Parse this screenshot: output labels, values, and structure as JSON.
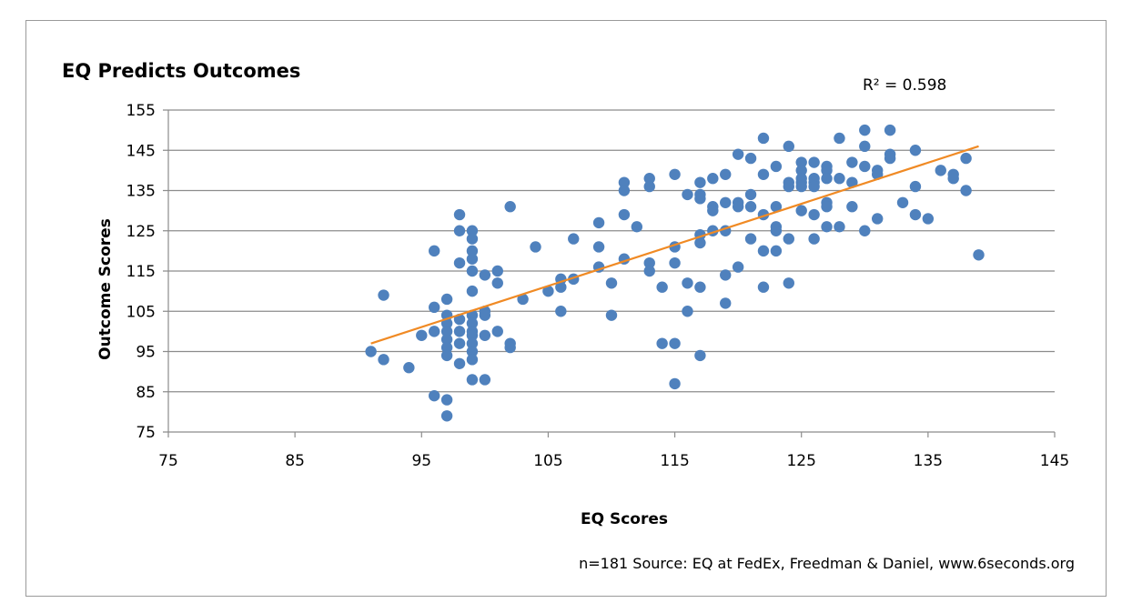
{
  "chart_data": {
    "type": "scatter",
    "title": "EQ Predicts Outcomes",
    "xlabel": "EQ Scores",
    "ylabel": "Outcome Scores",
    "xlim": [
      75,
      145
    ],
    "ylim": [
      75,
      155
    ],
    "x_ticks": [
      75,
      85,
      95,
      105,
      115,
      125,
      135,
      145
    ],
    "y_ticks": [
      75,
      85,
      95,
      105,
      115,
      125,
      135,
      145,
      155
    ],
    "grid": "horizontal",
    "trendline": {
      "type": "linear",
      "x": [
        91,
        139
      ],
      "y": [
        97,
        146
      ],
      "r_squared_label": "R² = 0.598"
    },
    "source_note": "n=181  Source: EQ at FedEx, Freedman & Daniel, www.6seconds.org",
    "colors": {
      "points": "#4f81bd",
      "trendline": "#f08a24",
      "grid": "#8c8c8c"
    },
    "points": [
      [
        91,
        95
      ],
      [
        92,
        109
      ],
      [
        92,
        93
      ],
      [
        94,
        91
      ],
      [
        95,
        99
      ],
      [
        96,
        120
      ],
      [
        96,
        106
      ],
      [
        96,
        100
      ],
      [
        96,
        84
      ],
      [
        97,
        108
      ],
      [
        97,
        104
      ],
      [
        97,
        102
      ],
      [
        97,
        100
      ],
      [
        97,
        98
      ],
      [
        97,
        96
      ],
      [
        97,
        94
      ],
      [
        97,
        83
      ],
      [
        97,
        79
      ],
      [
        98,
        129
      ],
      [
        98,
        125
      ],
      [
        98,
        117
      ],
      [
        98,
        103
      ],
      [
        98,
        100
      ],
      [
        98,
        97
      ],
      [
        98,
        92
      ],
      [
        99,
        125
      ],
      [
        99,
        123
      ],
      [
        99,
        120
      ],
      [
        99,
        118
      ],
      [
        99,
        115
      ],
      [
        99,
        110
      ],
      [
        99,
        104
      ],
      [
        99,
        102
      ],
      [
        99,
        100
      ],
      [
        99,
        99
      ],
      [
        99,
        97
      ],
      [
        99,
        95
      ],
      [
        99,
        93
      ],
      [
        99,
        88
      ],
      [
        100,
        114
      ],
      [
        100,
        105
      ],
      [
        100,
        104
      ],
      [
        100,
        99
      ],
      [
        100,
        88
      ],
      [
        101,
        115
      ],
      [
        101,
        112
      ],
      [
        101,
        100
      ],
      [
        102,
        131
      ],
      [
        102,
        97
      ],
      [
        102,
        96
      ],
      [
        103,
        108
      ],
      [
        104,
        121
      ],
      [
        105,
        110
      ],
      [
        106,
        113
      ],
      [
        106,
        111
      ],
      [
        106,
        105
      ],
      [
        107,
        123
      ],
      [
        107,
        113
      ],
      [
        109,
        127
      ],
      [
        109,
        121
      ],
      [
        109,
        116
      ],
      [
        110,
        112
      ],
      [
        110,
        104
      ],
      [
        111,
        137
      ],
      [
        111,
        135
      ],
      [
        111,
        129
      ],
      [
        111,
        118
      ],
      [
        112,
        126
      ],
      [
        113,
        138
      ],
      [
        113,
        136
      ],
      [
        113,
        117
      ],
      [
        113,
        115
      ],
      [
        114,
        111
      ],
      [
        114,
        97
      ],
      [
        115,
        139
      ],
      [
        115,
        121
      ],
      [
        115,
        117
      ],
      [
        115,
        97
      ],
      [
        115,
        87
      ],
      [
        116,
        134
      ],
      [
        116,
        112
      ],
      [
        116,
        105
      ],
      [
        117,
        137
      ],
      [
        117,
        134
      ],
      [
        117,
        133
      ],
      [
        117,
        124
      ],
      [
        117,
        122
      ],
      [
        117,
        111
      ],
      [
        117,
        94
      ],
      [
        118,
        138
      ],
      [
        118,
        131
      ],
      [
        118,
        130
      ],
      [
        118,
        125
      ],
      [
        119,
        139
      ],
      [
        119,
        132
      ],
      [
        119,
        125
      ],
      [
        119,
        114
      ],
      [
        119,
        107
      ],
      [
        120,
        144
      ],
      [
        120,
        132
      ],
      [
        120,
        131
      ],
      [
        120,
        116
      ],
      [
        121,
        143
      ],
      [
        121,
        134
      ],
      [
        121,
        131
      ],
      [
        121,
        123
      ],
      [
        122,
        148
      ],
      [
        122,
        139
      ],
      [
        122,
        129
      ],
      [
        122,
        120
      ],
      [
        122,
        111
      ],
      [
        123,
        141
      ],
      [
        123,
        131
      ],
      [
        123,
        126
      ],
      [
        123,
        125
      ],
      [
        123,
        120
      ],
      [
        124,
        146
      ],
      [
        124,
        137
      ],
      [
        124,
        136
      ],
      [
        124,
        123
      ],
      [
        124,
        112
      ],
      [
        125,
        142
      ],
      [
        125,
        140
      ],
      [
        125,
        138
      ],
      [
        125,
        137
      ],
      [
        125,
        136
      ],
      [
        125,
        130
      ],
      [
        126,
        142
      ],
      [
        126,
        138
      ],
      [
        126,
        137
      ],
      [
        126,
        136
      ],
      [
        126,
        129
      ],
      [
        126,
        123
      ],
      [
        127,
        141
      ],
      [
        127,
        140
      ],
      [
        127,
        138
      ],
      [
        127,
        132
      ],
      [
        127,
        131
      ],
      [
        127,
        126
      ],
      [
        128,
        148
      ],
      [
        128,
        138
      ],
      [
        128,
        126
      ],
      [
        129,
        142
      ],
      [
        129,
        137
      ],
      [
        129,
        131
      ],
      [
        130,
        150
      ],
      [
        130,
        146
      ],
      [
        130,
        141
      ],
      [
        130,
        125
      ],
      [
        131,
        140
      ],
      [
        131,
        139
      ],
      [
        131,
        128
      ],
      [
        132,
        150
      ],
      [
        132,
        144
      ],
      [
        132,
        143
      ],
      [
        133,
        132
      ],
      [
        134,
        145
      ],
      [
        134,
        136
      ],
      [
        134,
        129
      ],
      [
        135,
        128
      ],
      [
        136,
        140
      ],
      [
        137,
        139
      ],
      [
        137,
        138
      ],
      [
        138,
        143
      ],
      [
        138,
        135
      ],
      [
        139,
        119
      ]
    ]
  }
}
